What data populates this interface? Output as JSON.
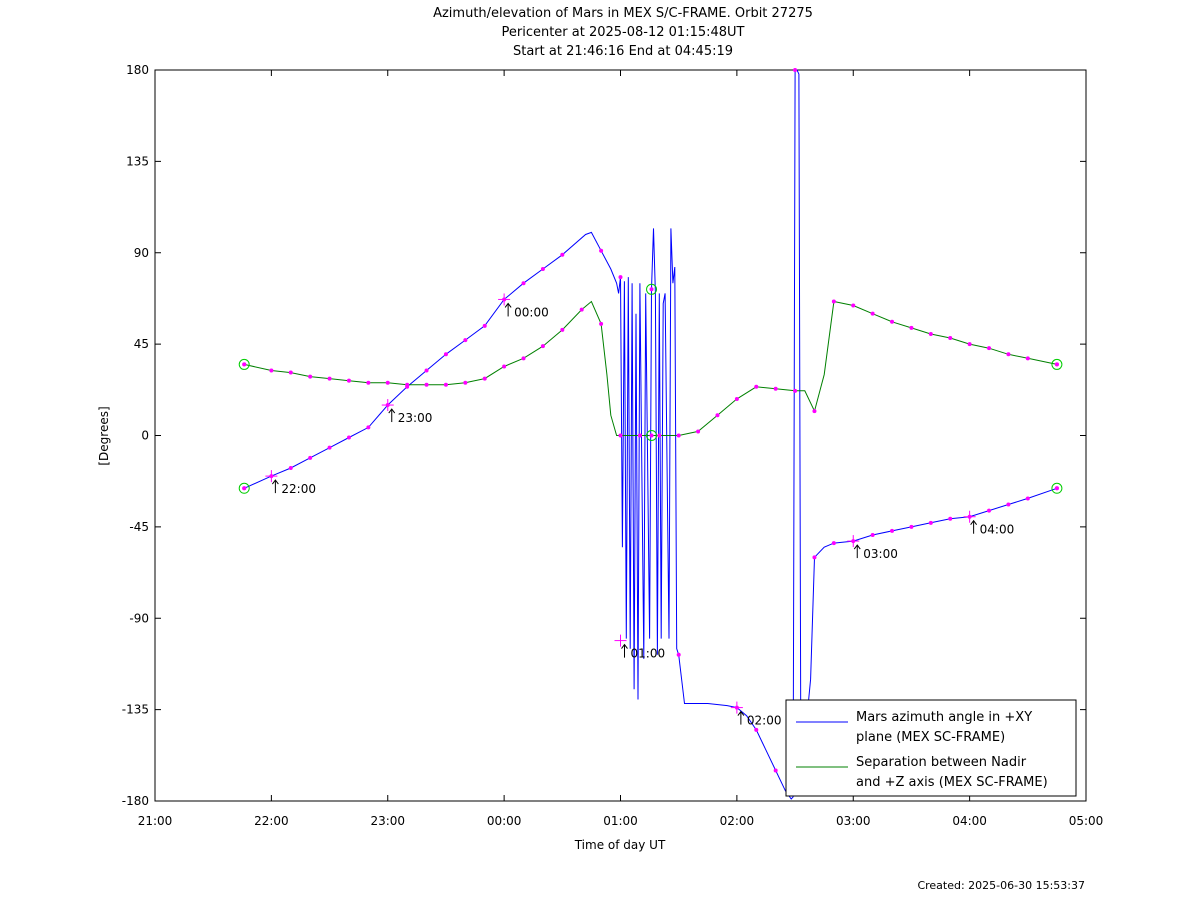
{
  "chart_data": {
    "type": "line",
    "title_lines": [
      "Azimuth/elevation of Mars in MEX S/C-FRAME.  Orbit 27275",
      "Pericenter at 2025-08-12 01:15:48UT",
      "Start at 21:46:16 End at 04:45:19"
    ],
    "xlabel": "Time of day UT",
    "ylabel": "[Degrees]",
    "footer": "Created: 2025-06-30 15:53:37",
    "xlim": [
      "21:00",
      "05:00"
    ],
    "ylim": [
      -180,
      180
    ],
    "x_tick_labels": [
      "21:00",
      "22:00",
      "23:00",
      "00:00",
      "01:00",
      "02:00",
      "03:00",
      "04:00",
      "05:00"
    ],
    "y_ticks": [
      180,
      135,
      90,
      45,
      0,
      -45,
      -90,
      -135,
      -180
    ],
    "colors": {
      "azimuth": "#0000ff",
      "separation": "#008000",
      "marker": "#ff00ff",
      "endpoint": "#00cc00"
    },
    "series": [
      {
        "name": "Mars azimuth angle in +XY plane (MEX SC-FRAME)",
        "key": "azimuth",
        "points": [
          [
            "21:46",
            -26
          ],
          [
            "22:00",
            -20
          ],
          [
            "22:10",
            -16
          ],
          [
            "22:20",
            -11
          ],
          [
            "22:30",
            -6
          ],
          [
            "22:40",
            -1
          ],
          [
            "22:50",
            4
          ],
          [
            "23:00",
            15
          ],
          [
            "23:10",
            24
          ],
          [
            "23:20",
            32
          ],
          [
            "23:30",
            40
          ],
          [
            "23:40",
            47
          ],
          [
            "23:50",
            54
          ],
          [
            "00:00",
            67
          ],
          [
            "00:10",
            75
          ],
          [
            "00:20",
            82
          ],
          [
            "00:30",
            89
          ],
          [
            "00:42",
            99
          ],
          [
            "00:45",
            100
          ],
          [
            "00:50",
            91
          ],
          [
            "00:55",
            82
          ],
          [
            "00:58",
            75
          ],
          [
            "00:59",
            70
          ],
          [
            "01:00",
            78
          ],
          [
            "01:01",
            -55
          ],
          [
            "01:02",
            76
          ],
          [
            "01:03",
            -100
          ],
          [
            "01:04",
            78
          ],
          [
            "01:05",
            -105
          ],
          [
            "01:06",
            75
          ],
          [
            "01:07",
            -125
          ],
          [
            "01:08",
            60
          ],
          [
            "01:09",
            -130
          ],
          [
            "01:10",
            75
          ],
          [
            "01:12",
            -110
          ],
          [
            "01:13",
            70
          ],
          [
            "01:15",
            -100
          ],
          [
            "01:16",
            72
          ],
          [
            "01:17",
            102
          ],
          [
            "01:18",
            70
          ],
          [
            "01:19",
            -108
          ],
          [
            "01:20",
            70
          ],
          [
            "01:21",
            -100
          ],
          [
            "01:22",
            65
          ],
          [
            "01:23",
            70
          ],
          [
            "01:25",
            -100
          ],
          [
            "01:26",
            102
          ],
          [
            "01:27",
            75
          ],
          [
            "01:28",
            83
          ],
          [
            "01:29",
            -105
          ],
          [
            "01:30",
            -108
          ],
          [
            "01:33",
            -132
          ],
          [
            "01:45",
            -132
          ],
          [
            "01:55",
            -133
          ],
          [
            "02:00",
            -134
          ],
          [
            "02:05",
            -138
          ],
          [
            "02:10",
            -145
          ],
          [
            "02:15",
            -155
          ],
          [
            "02:20",
            -165
          ],
          [
            "02:25",
            -175
          ],
          [
            "02:28",
            -179
          ],
          [
            "02:29",
            -178
          ],
          [
            "02:30",
            180
          ],
          [
            "02:31",
            180
          ],
          [
            "02:32",
            178
          ],
          [
            "02:33",
            -170
          ],
          [
            "02:35",
            -150
          ],
          [
            "02:38",
            -120
          ],
          [
            "02:40",
            -60
          ],
          [
            "02:45",
            -55
          ],
          [
            "02:50",
            -53
          ],
          [
            "03:00",
            -52
          ],
          [
            "03:10",
            -49
          ],
          [
            "03:20",
            -47
          ],
          [
            "03:30",
            -45
          ],
          [
            "03:40",
            -43
          ],
          [
            "03:50",
            -41
          ],
          [
            "04:00",
            -40
          ],
          [
            "04:10",
            -37
          ],
          [
            "04:20",
            -34
          ],
          [
            "04:30",
            -31
          ],
          [
            "04:45",
            -26
          ]
        ],
        "markers": [
          "21:46",
          "22:00",
          "22:10",
          "22:20",
          "22:30",
          "22:40",
          "22:50",
          "23:00",
          "23:10",
          "23:20",
          "23:30",
          "23:40",
          "23:50",
          "00:00",
          "00:10",
          "00:20",
          "00:30",
          "00:40",
          "00:50",
          "01:00",
          "01:30",
          "01:40",
          "01:50",
          "02:00",
          "02:10",
          "02:20",
          "02:30",
          "02:40",
          "02:50",
          "03:00",
          "03:10",
          "03:20",
          "03:30",
          "03:40",
          "03:50",
          "04:00",
          "04:10",
          "04:20",
          "04:30",
          "04:45"
        ]
      },
      {
        "name": "Separation between Nadir and +Z axis (MEX SC-FRAME)",
        "key": "separation",
        "points": [
          [
            "21:46",
            35
          ],
          [
            "22:00",
            32
          ],
          [
            "22:10",
            31
          ],
          [
            "22:20",
            29
          ],
          [
            "22:30",
            28
          ],
          [
            "22:40",
            27
          ],
          [
            "22:50",
            26
          ],
          [
            "23:00",
            26
          ],
          [
            "23:10",
            25
          ],
          [
            "23:20",
            25
          ],
          [
            "23:30",
            25
          ],
          [
            "23:40",
            26
          ],
          [
            "23:50",
            28
          ],
          [
            "00:00",
            34
          ],
          [
            "00:10",
            38
          ],
          [
            "00:20",
            44
          ],
          [
            "00:30",
            52
          ],
          [
            "00:40",
            62
          ],
          [
            "00:45",
            66
          ],
          [
            "00:50",
            55
          ],
          [
            "00:53",
            30
          ],
          [
            "00:55",
            10
          ],
          [
            "00:58",
            0
          ],
          [
            "01:00",
            0
          ],
          [
            "01:10",
            0
          ],
          [
            "01:16",
            0
          ],
          [
            "01:20",
            0
          ],
          [
            "01:30",
            0
          ],
          [
            "01:40",
            2
          ],
          [
            "01:50",
            10
          ],
          [
            "02:00",
            18
          ],
          [
            "02:10",
            24
          ],
          [
            "02:20",
            23
          ],
          [
            "02:30",
            22
          ],
          [
            "02:35",
            22
          ],
          [
            "02:40",
            12
          ],
          [
            "02:45",
            30
          ],
          [
            "02:50",
            66
          ],
          [
            "03:00",
            64
          ],
          [
            "03:10",
            60
          ],
          [
            "03:20",
            56
          ],
          [
            "03:30",
            53
          ],
          [
            "03:40",
            50
          ],
          [
            "03:50",
            48
          ],
          [
            "04:00",
            45
          ],
          [
            "04:10",
            43
          ],
          [
            "04:20",
            40
          ],
          [
            "04:30",
            38
          ],
          [
            "04:45",
            35
          ]
        ],
        "markers": [
          "21:46",
          "22:00",
          "22:10",
          "22:20",
          "22:30",
          "22:40",
          "22:50",
          "23:00",
          "23:10",
          "23:20",
          "23:30",
          "23:40",
          "23:50",
          "00:00",
          "00:10",
          "00:20",
          "00:30",
          "00:40",
          "00:50",
          "01:00",
          "01:10",
          "01:20",
          "01:30",
          "01:40",
          "01:50",
          "02:00",
          "02:10",
          "02:20",
          "02:30",
          "02:40",
          "02:50",
          "03:00",
          "03:10",
          "03:20",
          "03:30",
          "03:40",
          "03:50",
          "04:00",
          "04:10",
          "04:20",
          "04:30",
          "04:45"
        ]
      }
    ],
    "hour_annotations": [
      {
        "label": "22:00",
        "x": "22:00",
        "y": -20
      },
      {
        "label": "23:00",
        "x": "23:00",
        "y": 15
      },
      {
        "label": "00:00",
        "x": "00:00",
        "y": 67
      },
      {
        "label": "01:00",
        "x": "01:00",
        "y": -101
      },
      {
        "label": "02:00",
        "x": "02:00",
        "y": -134
      },
      {
        "label": "03:00",
        "x": "03:00",
        "y": -52
      },
      {
        "label": "04:00",
        "x": "04:00",
        "y": -40
      }
    ],
    "endpoint_circles": [
      {
        "x": "21:46",
        "y": 35
      },
      {
        "x": "21:46",
        "y": -26
      },
      {
        "x": "04:45",
        "y": 35
      },
      {
        "x": "04:45",
        "y": -26
      },
      {
        "x": "01:16",
        "y": 72
      },
      {
        "x": "01:16",
        "y": 0
      }
    ],
    "legend": {
      "position": "bottom-right",
      "entries": [
        {
          "key": "azimuth",
          "lines": [
            "Mars azimuth angle in +XY",
            "plane (MEX SC-FRAME)"
          ]
        },
        {
          "key": "separation",
          "lines": [
            "Separation between Nadir",
            "and +Z axis (MEX SC-FRAME)"
          ]
        }
      ]
    }
  }
}
